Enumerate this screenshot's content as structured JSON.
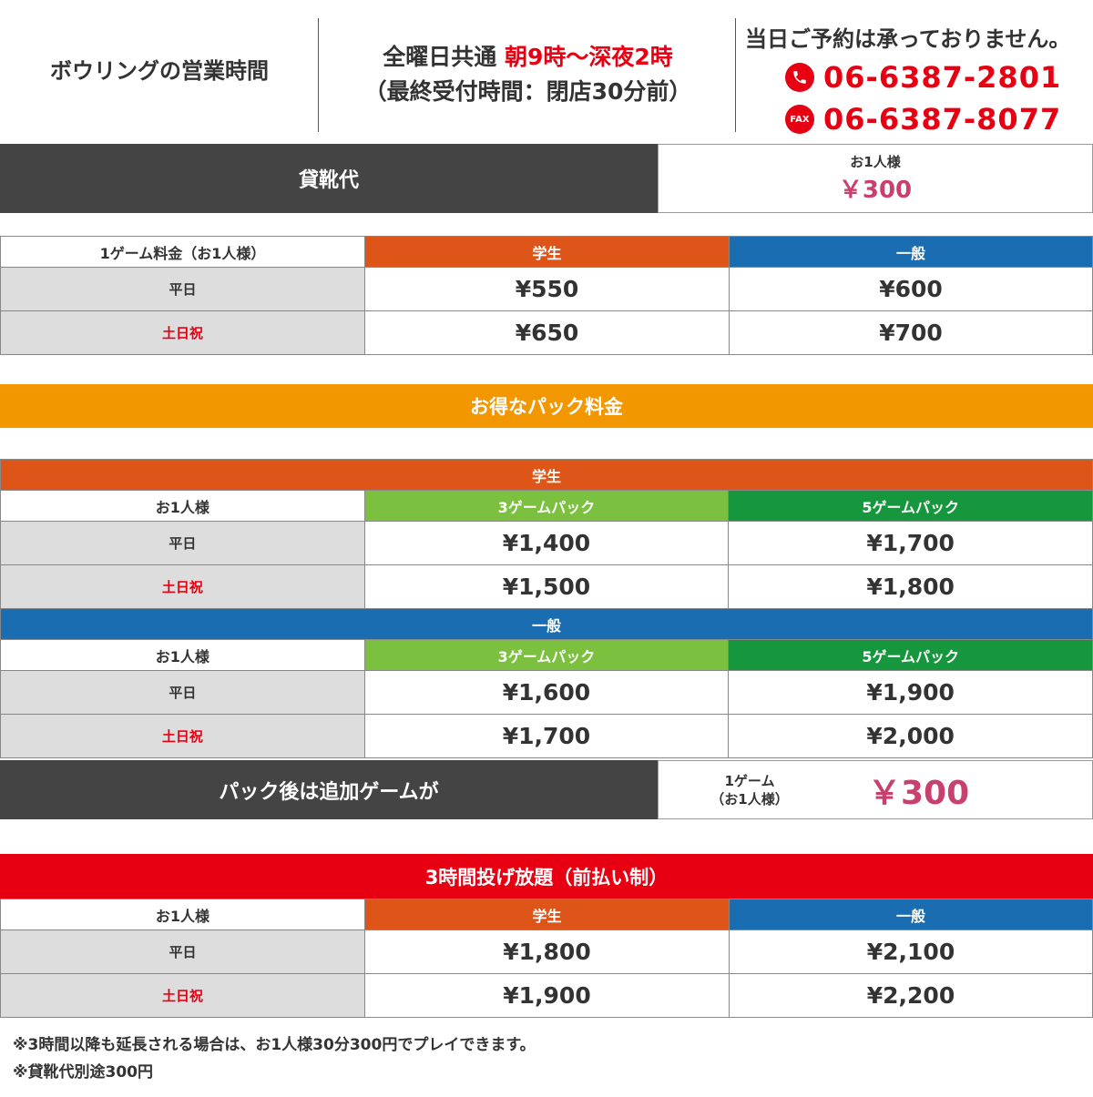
{
  "header": {
    "hours_label": "ボウリングの営業時間",
    "hours_prefix": "全曜日共通",
    "hours_time": "朝9時〜深夜2時",
    "hours_note": "（最終受付時間：閉店30分前）",
    "notice": "当日ご予約は承っておりません。",
    "phone": "06-6387-2801",
    "fax_label": "FAX",
    "fax": "06-6387-8077"
  },
  "rental": {
    "label": "貸靴代",
    "sub": "お1人様",
    "price": "￥300"
  },
  "game_fee": {
    "header": [
      "1ゲーム料金（お1人様）",
      "学生",
      "一般"
    ],
    "rows": [
      {
        "day": "平日",
        "student": "¥550",
        "general": "¥600"
      },
      {
        "day": "土日祝",
        "student": "¥650",
        "general": "¥700"
      }
    ]
  },
  "pack": {
    "title": "お得なパック料金",
    "student": {
      "band": "学生",
      "header": [
        "お1人様",
        "3ゲームパック",
        "5ゲームパック"
      ],
      "rows": [
        {
          "day": "平日",
          "g3": "¥1,400",
          "g5": "¥1,700"
        },
        {
          "day": "土日祝",
          "g3": "¥1,500",
          "g5": "¥1,800"
        }
      ]
    },
    "general": {
      "band": "一般",
      "header": [
        "お1人様",
        "3ゲームパック",
        "5ゲームパック"
      ],
      "rows": [
        {
          "day": "平日",
          "g3": "¥1,600",
          "g5": "¥1,900"
        },
        {
          "day": "土日祝",
          "g3": "¥1,700",
          "g5": "¥2,000"
        }
      ]
    },
    "extra": {
      "label": "パック後は追加ゲームが",
      "sub1": "1ゲーム",
      "sub2": "（お1人様）",
      "price": "￥300"
    }
  },
  "unlimited": {
    "title": "3時間投げ放題（前払い制）",
    "header": [
      "お1人様",
      "学生",
      "一般"
    ],
    "rows": [
      {
        "day": "平日",
        "student": "¥1,800",
        "general": "¥2,100"
      },
      {
        "day": "土日祝",
        "student": "¥1,900",
        "general": "¥2,200"
      }
    ]
  },
  "notes": [
    "※3時間以降も延長される場合は、お1人様30分300円でプレイできます。",
    "※貸靴代別途300円"
  ],
  "colors": {
    "red": "#e60012",
    "orange_banner": "#f39700",
    "student_orange": "#dd5518",
    "general_blue": "#1a6db0",
    "pack3_green": "#7cc03f",
    "pack5_green": "#16973d",
    "dark_label": "#444444",
    "price_pink": "#c9406e"
  }
}
